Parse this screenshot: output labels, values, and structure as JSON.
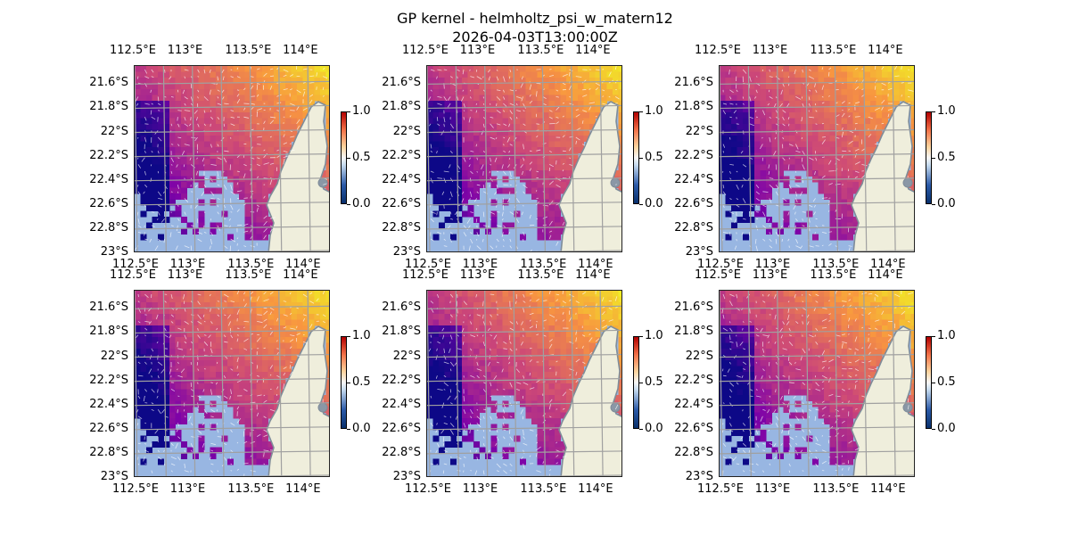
{
  "figure": {
    "title_line1": "GP kernel - helmholtz_psi_w_matern12",
    "title_line2": "2026-04-03T13:00:00Z"
  },
  "chart_data": {
    "type": "heatmap",
    "panel_count": 6,
    "grid": "2x3",
    "x_axis": {
      "range": [
        112.5,
        114.2
      ],
      "ticks": [
        112.5,
        113.0,
        113.5,
        114.0
      ],
      "tick_labels": [
        "112.5°E",
        "113°E",
        "113.5°E",
        "114°E"
      ]
    },
    "y_axis": {
      "range": [
        -23.0,
        -21.45
      ],
      "ticks": [
        -21.6,
        -21.8,
        -22.0,
        -22.2,
        -22.4,
        -22.6,
        -22.8,
        -23.0
      ],
      "tick_labels": [
        "21.6°S",
        "21.8°S",
        "22°S",
        "22.2°S",
        "22.4°S",
        "22.6°S",
        "22.8°S",
        "23°S"
      ]
    },
    "colorbar": {
      "range": [
        0.0,
        1.0
      ],
      "ticks": [
        0.0,
        0.5,
        1.0
      ],
      "tick_labels": [
        "0.0",
        "0.5",
        "1.0"
      ],
      "colormap": "RdYlBu_r"
    },
    "field_colormap": "plasma",
    "grid_lines": true,
    "quiver_overlay": true,
    "colors": {
      "land": "#efeedc",
      "ocean": "#98b6e2",
      "coastline": "#7f8c99",
      "gridline": "#a0a0a0",
      "arrows": "#ffffff"
    }
  }
}
